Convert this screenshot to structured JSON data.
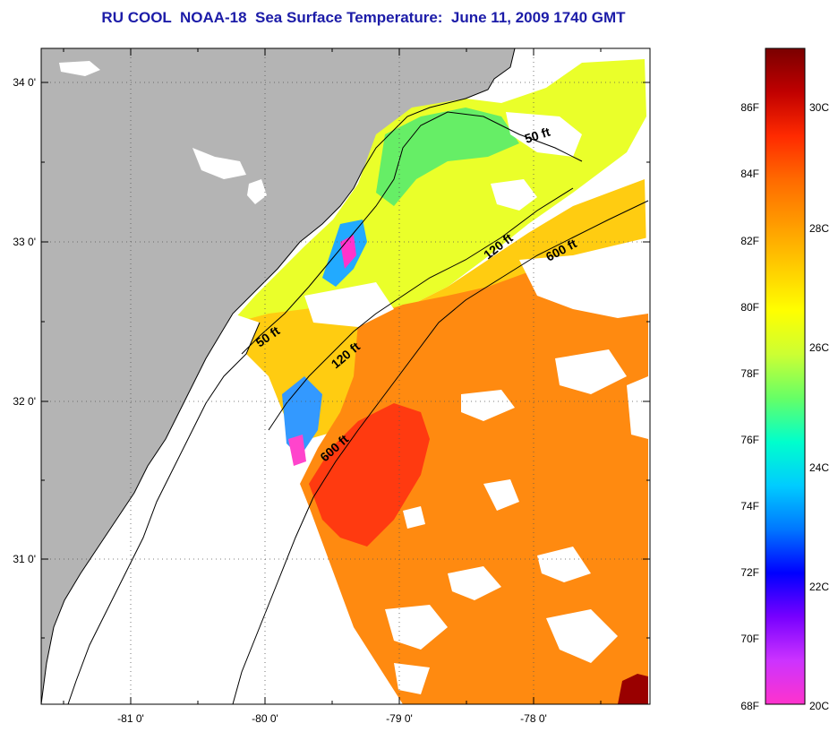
{
  "title": "RU COOL  NOAA-18  Sea Surface Temperature:  June 11, 2009 1740 GMT",
  "colors": {
    "title": "#1c1ca8",
    "land": "#b4b4b4",
    "cloud": "#ffffff",
    "coastline": "#000000"
  },
  "map": {
    "lat_ticks": [
      "31 0'",
      "32 0'",
      "33 0'",
      "34 0'"
    ],
    "lon_ticks": [
      "-81 0'",
      "-80 0'",
      "-79 0'",
      "-78 0'"
    ],
    "grid": "dotted",
    "contours": [
      {
        "label": "50 ft"
      },
      {
        "label": "120 ft"
      },
      {
        "label": "600 ft"
      },
      {
        "label": "50 ft"
      },
      {
        "label": "120 ft"
      },
      {
        "label": "600 ft"
      }
    ]
  },
  "colorbar": {
    "fahrenheit_labels": [
      "86F",
      "84F",
      "82F",
      "80F",
      "78F",
      "76F",
      "74F",
      "72F",
      "70F",
      "68F"
    ],
    "celsius_labels": [
      "30C",
      "28C",
      "26C",
      "24C",
      "22C",
      "20C"
    ],
    "gradient_stops": [
      "#7a0000",
      "#c00000",
      "#ff2a00",
      "#ff6a00",
      "#ff9a00",
      "#ffcc00",
      "#ffff00",
      "#ccff33",
      "#66ff66",
      "#00ffcc",
      "#00ccff",
      "#0077ff",
      "#0000ff",
      "#7700ff",
      "#cc33ff",
      "#ff33cc"
    ]
  }
}
